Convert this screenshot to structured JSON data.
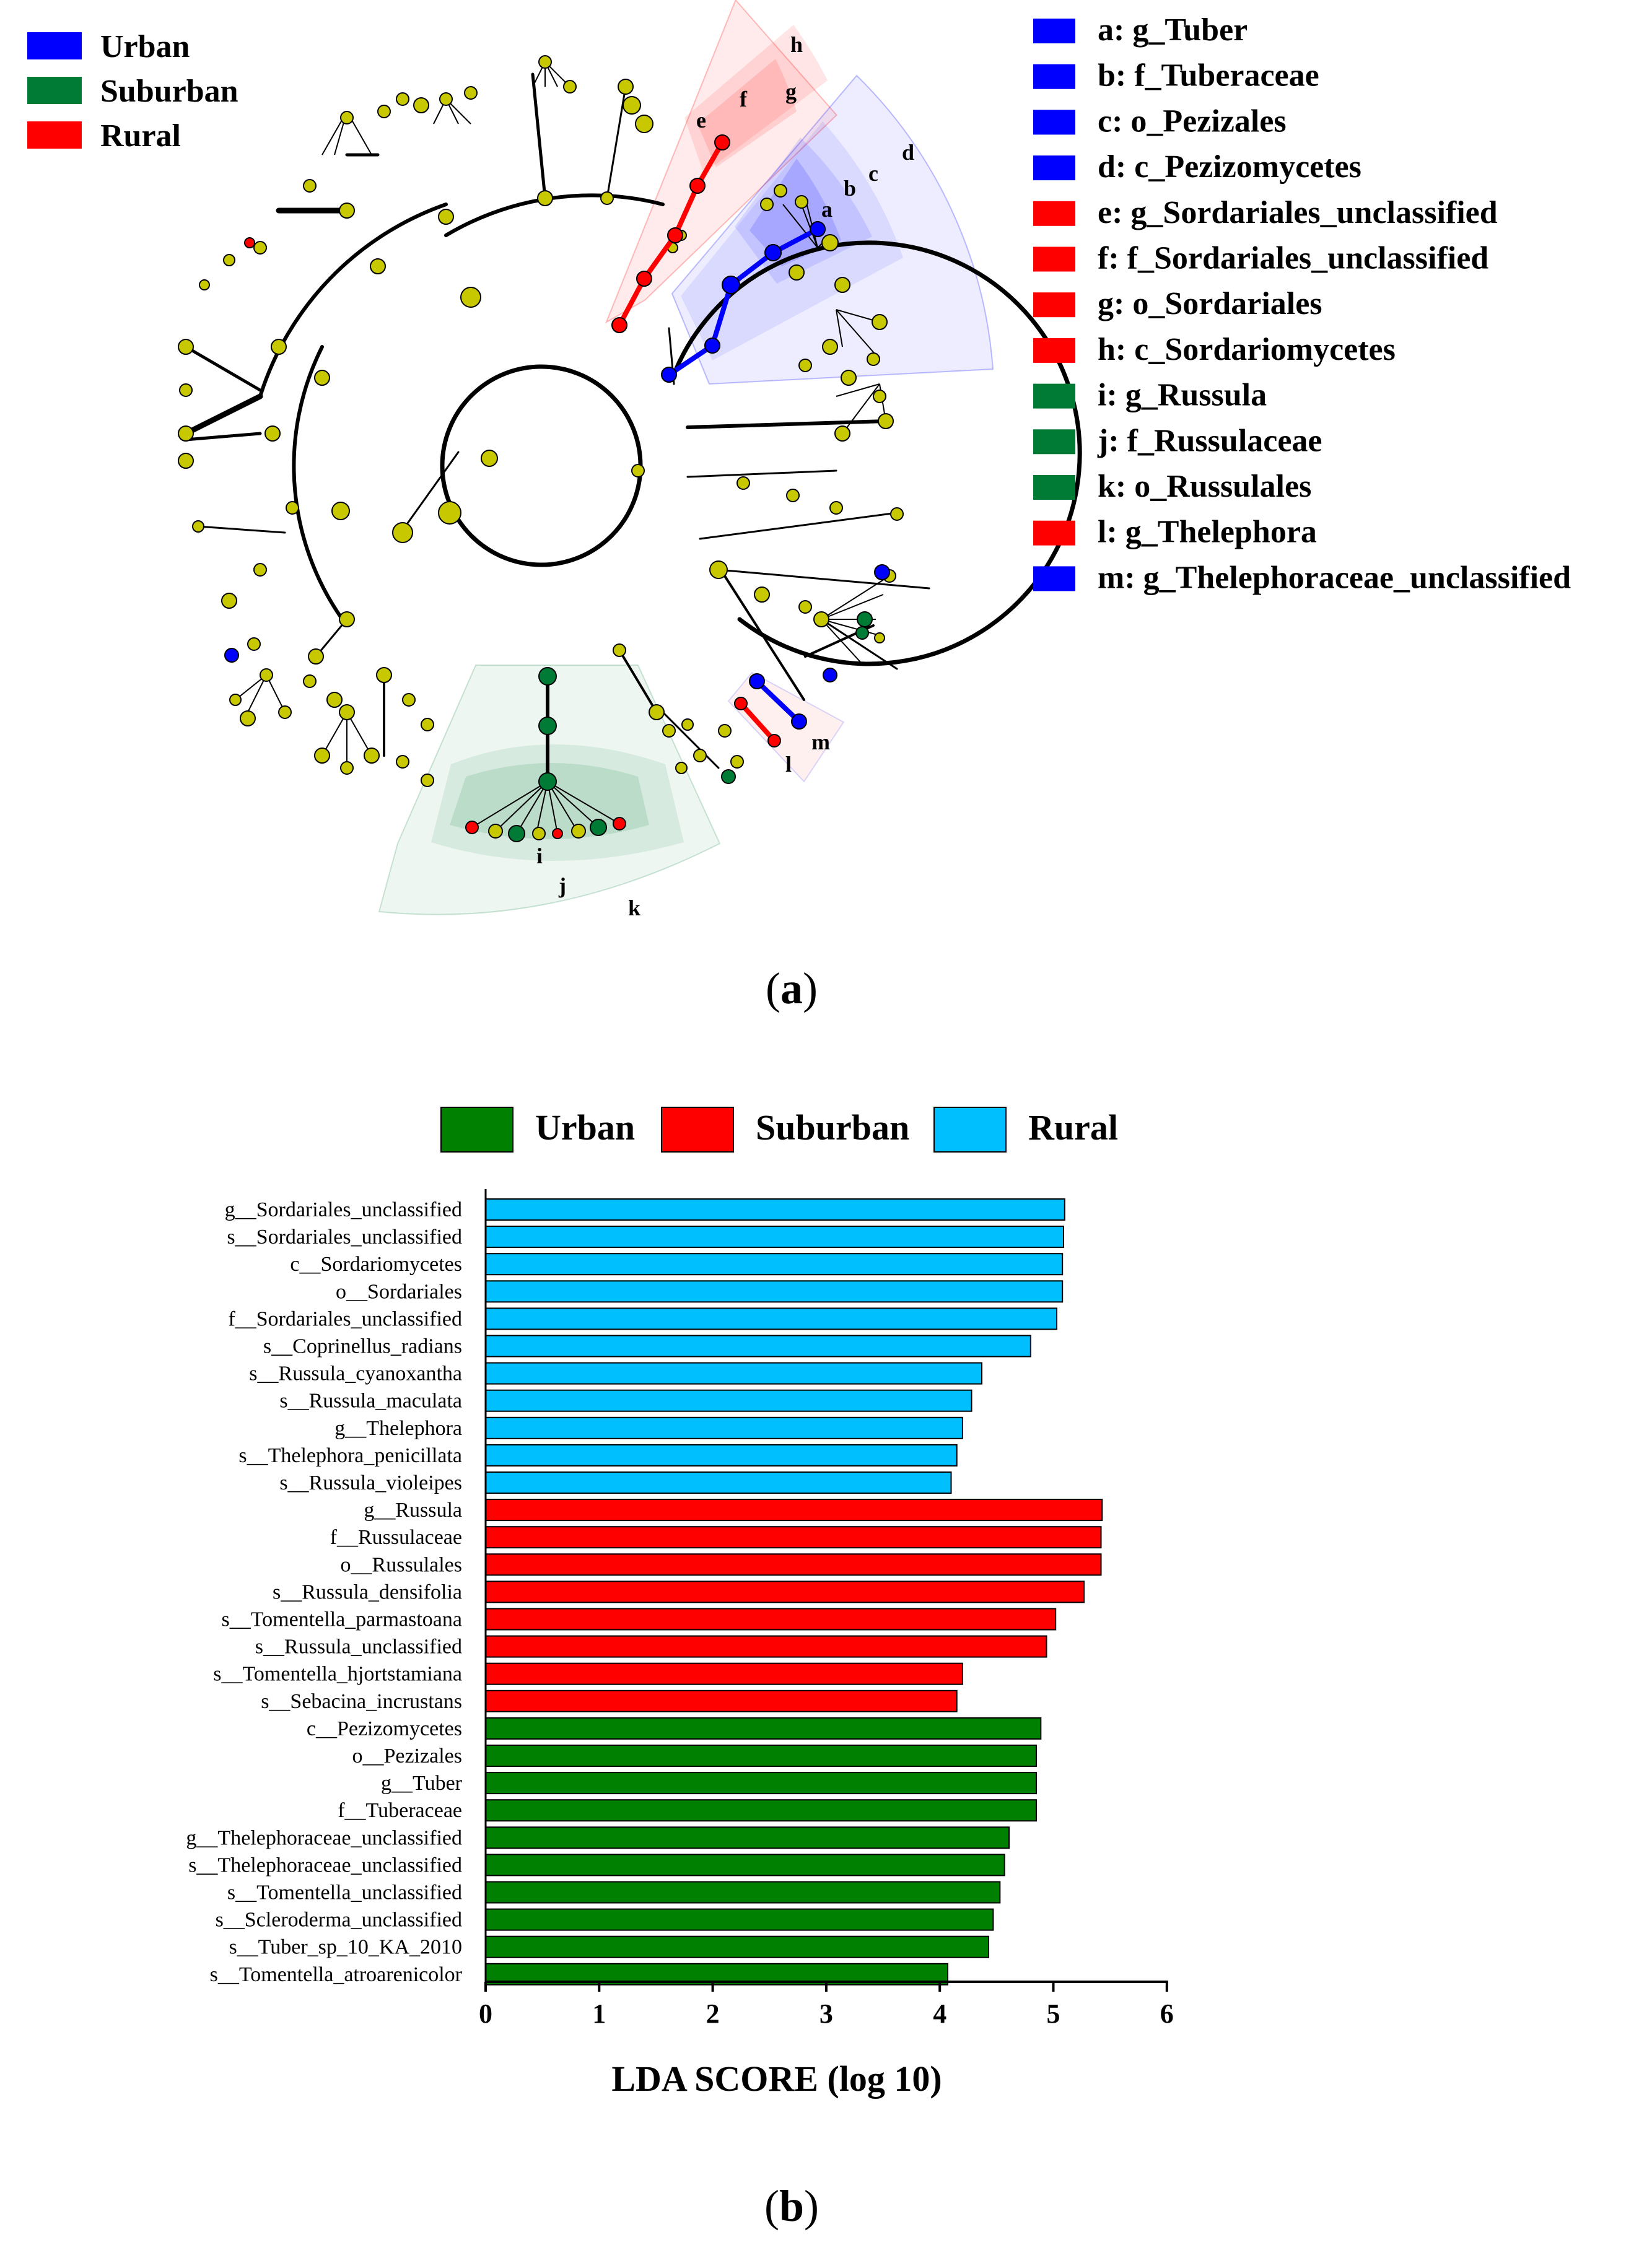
{
  "panel_a": {
    "caption_open": "(",
    "caption_letter": "a",
    "caption_close": ")",
    "group_legend": [
      {
        "label": "Urban",
        "color": "#0000ff"
      },
      {
        "label": "Suburban",
        "color": "#007b35"
      },
      {
        "label": "Rural",
        "color": "#ff0000"
      }
    ],
    "taxa_legend": [
      {
        "label": "a: g_Tuber",
        "color": "#0000ff"
      },
      {
        "label": "b: f_Tuberaceae",
        "color": "#0000ff"
      },
      {
        "label": "c: o_Pezizales",
        "color": "#0000ff"
      },
      {
        "label": "d: c_Pezizomycetes",
        "color": "#0000ff"
      },
      {
        "label": "e: g_Sordariales_unclassified",
        "color": "#ff0000"
      },
      {
        "label": "f: f_Sordariales_unclassified",
        "color": "#ff0000"
      },
      {
        "label": "g: o_Sordariales",
        "color": "#ff0000"
      },
      {
        "label": "h: c_Sordariomycetes",
        "color": "#ff0000"
      },
      {
        "label": "i: g_Russula",
        "color": "#007b35"
      },
      {
        "label": "j: f_Russulaceae",
        "color": "#007b35"
      },
      {
        "label": "k: o_Russulales",
        "color": "#007b35"
      },
      {
        "label": "l: g_Thelephora",
        "color": "#ff0000"
      },
      {
        "label": "m: g_Thelephoraceae_unclassified",
        "color": "#0000ff"
      }
    ],
    "clade_letters": [
      "a",
      "b",
      "c",
      "d",
      "e",
      "f",
      "g",
      "h",
      "i",
      "j",
      "k",
      "l",
      "m"
    ],
    "node_colors": {
      "neutral": "#c8c800",
      "urban": "#0000ff",
      "suburban": "#007b35",
      "rural": "#ff0000"
    }
  },
  "chart_data": {
    "type": "bar",
    "orientation": "horizontal",
    "caption_open": "(",
    "caption_letter": "b",
    "caption_close": ")",
    "xlabel": "LDA SCORE (log 10)",
    "xlim": [
      0,
      6
    ],
    "xticks": [
      "0",
      "1",
      "2",
      "3",
      "4",
      "5",
      "6"
    ],
    "legend": [
      {
        "label": "Urban",
        "color": "#008000"
      },
      {
        "label": "Suburban",
        "color": "#ff0000"
      },
      {
        "label": "Rural",
        "color": "#00bfff"
      }
    ],
    "bars": [
      {
        "label": "g__Sordariales_unclassified",
        "value": 5.1,
        "group": 2
      },
      {
        "label": "s__Sordariales_unclassified",
        "value": 5.09,
        "group": 2
      },
      {
        "label": "c__Sordariomycetes",
        "value": 5.08,
        "group": 2
      },
      {
        "label": "o__Sordariales",
        "value": 5.08,
        "group": 2
      },
      {
        "label": "f__Sordariales_unclassified",
        "value": 5.03,
        "group": 2
      },
      {
        "label": "s__Coprinellus_radians",
        "value": 4.8,
        "group": 2
      },
      {
        "label": "s__Russula_cyanoxantha",
        "value": 4.37,
        "group": 2
      },
      {
        "label": "s__Russula_maculata",
        "value": 4.28,
        "group": 2
      },
      {
        "label": "g__Thelephora",
        "value": 4.2,
        "group": 2
      },
      {
        "label": "s__Thelephora_penicillata",
        "value": 4.15,
        "group": 2
      },
      {
        "label": "s__Russula_violeipes",
        "value": 4.1,
        "group": 2
      },
      {
        "label": "g__Russula",
        "value": 5.43,
        "group": 1
      },
      {
        "label": "f__Russulaceae",
        "value": 5.42,
        "group": 1
      },
      {
        "label": "o__Russulales",
        "value": 5.42,
        "group": 1
      },
      {
        "label": "s__Russula_densifolia",
        "value": 5.27,
        "group": 1
      },
      {
        "label": "s__Tomentella_parmastoana",
        "value": 5.02,
        "group": 1
      },
      {
        "label": "s__Russula_unclassified",
        "value": 4.94,
        "group": 1
      },
      {
        "label": "s__Tomentella_hjortstamiana",
        "value": 4.2,
        "group": 1
      },
      {
        "label": "s__Sebacina_incrustans",
        "value": 4.15,
        "group": 1
      },
      {
        "label": "c__Pezizomycetes",
        "value": 4.89,
        "group": 0
      },
      {
        "label": "o__Pezizales",
        "value": 4.85,
        "group": 0
      },
      {
        "label": "g__Tuber",
        "value": 4.85,
        "group": 0
      },
      {
        "label": "f__Tuberaceae",
        "value": 4.85,
        "group": 0
      },
      {
        "label": "g__Thelephoraceae_unclassified",
        "value": 4.61,
        "group": 0
      },
      {
        "label": "s__Thelephoraceae_unclassified",
        "value": 4.57,
        "group": 0
      },
      {
        "label": "s__Tomentella_unclassified",
        "value": 4.53,
        "group": 0
      },
      {
        "label": "s__Scleroderma_unclassified",
        "value": 4.47,
        "group": 0
      },
      {
        "label": "s__Tuber_sp_10_KA_2010",
        "value": 4.43,
        "group": 0
      },
      {
        "label": "s__Tomentella_atroarenicolor",
        "value": 4.07,
        "group": 0
      }
    ]
  }
}
